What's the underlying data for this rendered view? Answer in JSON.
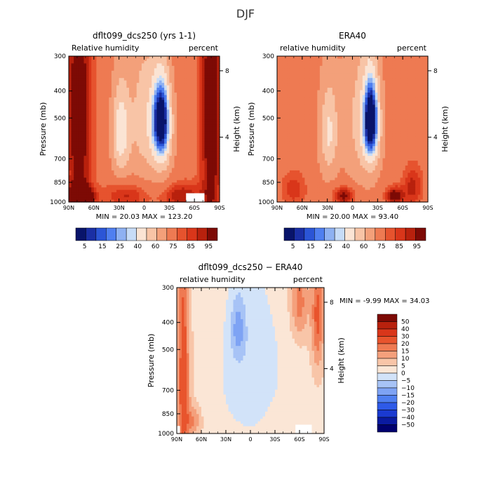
{
  "page_title": "DJF",
  "chart_data": [
    {
      "type": "heatmap",
      "title": "dflt099_dcs250 (yrs 1-1)",
      "left_label": "Relative humidity",
      "right_label": "percent",
      "xlabel": "",
      "ylabel": "Pressure (mb)",
      "y2label": "Height (km)",
      "x_ticks": [
        "90N",
        "60N",
        "30N",
        "0",
        "30S",
        "60S",
        "90S"
      ],
      "y_ticks": [
        "300",
        "400",
        "500",
        "700",
        "850",
        "1000"
      ],
      "y2_ticks": [
        "8",
        "4"
      ],
      "stats": {
        "min_label": "MIN =",
        "min": "20.03",
        "max_label": "MAX =",
        "max": "123.20"
      },
      "colorbar_labels": [
        "5",
        "15",
        "25",
        "40",
        "60",
        "75",
        "85",
        "95"
      ],
      "blobs": [
        {
          "lat": -20,
          "p": 500,
          "rx": 11,
          "rp": 170,
          "v": 22
        },
        {
          "lat": 28,
          "p": 560,
          "rx": 12,
          "rp": 240,
          "v": 33
        },
        {
          "lat": -22,
          "p": 560,
          "rx": 14,
          "rp": 260,
          "v": 37
        },
        {
          "lat": 0,
          "p": 500,
          "rx": 20,
          "rp": 360,
          "v": 45
        },
        {
          "lat": 78,
          "p": 500,
          "rx": 16,
          "rp": 900,
          "v": 92
        },
        {
          "lat": -80,
          "p": 500,
          "rx": 14,
          "rp": 900,
          "v": 92
        },
        {
          "lat": 75,
          "p": 960,
          "rx": 15,
          "rp": 90,
          "v": 108
        },
        {
          "lat": 20,
          "p": 950,
          "rx": 30,
          "rp": 110,
          "v": 82
        },
        {
          "lat": -45,
          "p": 950,
          "rx": 25,
          "rp": 110,
          "v": 85
        }
      ],
      "missing": [
        {
          "lat_from": -50,
          "lat_to": -72,
          "p_from": 930,
          "p_to": 1000
        }
      ]
    },
    {
      "type": "heatmap",
      "title": "ERA40",
      "left_label": "relative humidity",
      "right_label": "percent",
      "xlabel": "",
      "ylabel": "Pressure (mb)",
      "y2label": "Height (km)",
      "x_ticks": [
        "90N",
        "60N",
        "30N",
        "0",
        "30S",
        "60S",
        "90S"
      ],
      "y_ticks": [
        "300",
        "400",
        "500",
        "700",
        "850",
        "1000"
      ],
      "y2_ticks": [
        "8",
        "4"
      ],
      "stats": {
        "min_label": "MIN =",
        "min": "20.00",
        "max_label": "MAX =",
        "max": "93.40"
      },
      "colorbar_labels": [
        "5",
        "15",
        "25",
        "40",
        "60",
        "75",
        "85",
        "95"
      ],
      "blobs": [
        {
          "lat": -22,
          "p": 500,
          "rx": 9,
          "rp": 170,
          "v": 22
        },
        {
          "lat": -22,
          "p": 540,
          "rx": 13,
          "rp": 250,
          "v": 32
        },
        {
          "lat": 28,
          "p": 560,
          "rx": 12,
          "rp": 240,
          "v": 38
        },
        {
          "lat": -5,
          "p": 500,
          "rx": 18,
          "rp": 360,
          "v": 50
        },
        {
          "lat": 70,
          "p": 900,
          "rx": 18,
          "rp": 160,
          "v": 78
        },
        {
          "lat": -72,
          "p": 880,
          "rx": 14,
          "rp": 180,
          "v": 82
        },
        {
          "lat": 10,
          "p": 950,
          "rx": 15,
          "rp": 80,
          "v": 88
        },
        {
          "lat": -50,
          "p": 950,
          "rx": 12,
          "rp": 80,
          "v": 90
        }
      ],
      "missing": []
    },
    {
      "type": "heatmap",
      "title": "dflt099_dcs250 − ERA40",
      "left_label": "relative humidity",
      "right_label": "percent",
      "xlabel": "",
      "ylabel": "Pressure (mb)",
      "y2label": "Height (km)",
      "x_ticks": [
        "90N",
        "60N",
        "30N",
        "0",
        "30S",
        "60S",
        "90S"
      ],
      "y_ticks": [
        "300",
        "400",
        "500",
        "700",
        "850",
        "1000"
      ],
      "y2_ticks": [
        "8",
        "4"
      ],
      "stats": {
        "min_label": "MIN =",
        "min": "-9.99",
        "max_label": "MAX =",
        "max": "34.03"
      },
      "colorbar_labels": [
        "50",
        "40",
        "30",
        "20",
        "15",
        "10",
        "5",
        "0",
        "−5",
        "−10",
        "−15",
        "−20",
        "−30",
        "−40",
        "−50"
      ],
      "blobs": [
        {
          "lat": 15,
          "p": 420,
          "rx": 10,
          "rp": 120,
          "v": -8
        },
        {
          "lat": 0,
          "p": 600,
          "rx": 50,
          "rp": 500,
          "v": -3
        },
        {
          "lat": 82,
          "p": 650,
          "rx": 8,
          "rp": 700,
          "v": 25
        },
        {
          "lat": -82,
          "p": 380,
          "rx": 8,
          "rp": 200,
          "v": 22
        },
        {
          "lat": -60,
          "p": 340,
          "rx": 12,
          "rp": 120,
          "v": 18
        },
        {
          "lat": 70,
          "p": 900,
          "rx": 10,
          "rp": 120,
          "v": 15
        },
        {
          "lat": -40,
          "p": 900,
          "rx": 20,
          "rp": 140,
          "v": 6
        }
      ],
      "missing": [
        {
          "lat_from": 90,
          "lat_to": 86,
          "p_from": 940,
          "p_to": 1000
        },
        {
          "lat_from": -55,
          "lat_to": -75,
          "p_from": 930,
          "p_to": 1000
        }
      ]
    }
  ],
  "palettes": {
    "rh": [
      "#08146a",
      "#1a2fa5",
      "#2b55d6",
      "#4f7ff0",
      "#8eb1f2",
      "#c7dcf7",
      "#fbe4d4",
      "#f8c4a6",
      "#f3a07a",
      "#ee7a52",
      "#e6532e",
      "#d9361a",
      "#b8210d",
      "#7d0a05"
    ],
    "diff": [
      "#00006e",
      "#0a1aa0",
      "#1a3ad0",
      "#2e5ae8",
      "#4f7ff0",
      "#7ea3f4",
      "#a7c3f6",
      "#d2e3f9",
      "#fbe6d6",
      "#f8c5a8",
      "#f4a07c",
      "#ef7a52",
      "#e8542d",
      "#d9361a",
      "#b8210d",
      "#7d0a05"
    ]
  }
}
